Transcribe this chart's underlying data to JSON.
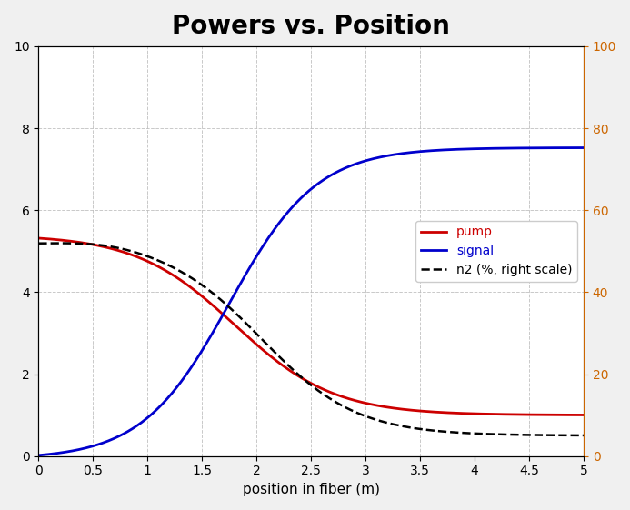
{
  "title": "Powers vs. Position",
  "xlabel": "position in fiber (m)",
  "ylabel_left": "",
  "ylabel_right": "",
  "xlim": [
    0,
    5
  ],
  "ylim_left": [
    0,
    10
  ],
  "ylim_right": [
    0,
    100
  ],
  "yticks_left": [
    0,
    2,
    4,
    6,
    8,
    10
  ],
  "yticks_right": [
    0,
    20,
    40,
    60,
    80,
    100
  ],
  "xticks": [
    0,
    0.5,
    1.0,
    1.5,
    2.0,
    2.5,
    3.0,
    3.5,
    4.0,
    4.5,
    5.0
  ],
  "pump_color": "#cc0000",
  "signal_color": "#0000cc",
  "n2_color": "#000000",
  "legend_labels": [
    "pump",
    "signal",
    "n2 (%, right scale)"
  ],
  "bg_color": "#f0f0f0",
  "plot_bg_color": "#ffffff",
  "title_fontsize": 20,
  "axis_fontsize": 11,
  "tick_fontsize": 10,
  "legend_fontsize": 10
}
